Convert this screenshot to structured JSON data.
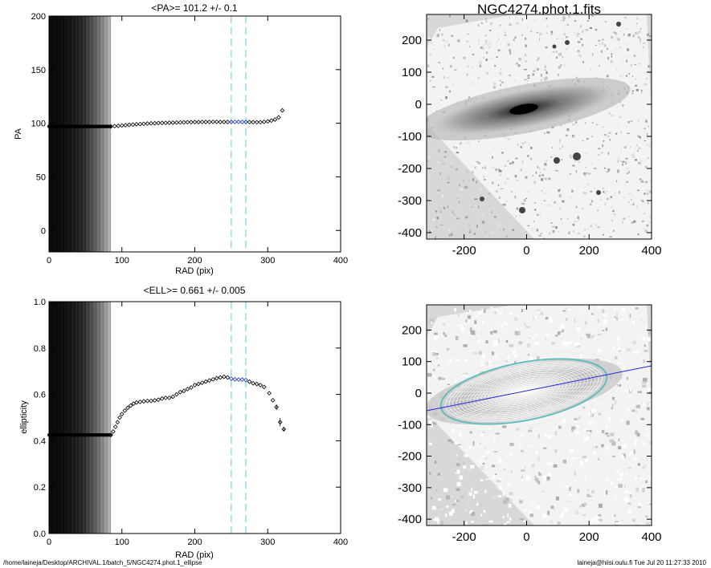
{
  "chart_data": [
    {
      "type": "scatter",
      "title": "<PA>= 101.2 +/-   0.1",
      "xlabel": "RAD (pix)",
      "ylabel": "PA",
      "xlim": [
        0,
        400
      ],
      "ylim": [
        -20,
        200
      ],
      "xticks": [
        "0",
        "100",
        "200",
        "300",
        "400"
      ],
      "yticks": [
        "0",
        "50",
        "100",
        "150",
        "200"
      ],
      "grid": false,
      "vlines": [
        250,
        270
      ],
      "flat_value": 97,
      "points": [
        [
          85,
          97
        ],
        [
          90,
          97.3
        ],
        [
          95,
          97.6
        ],
        [
          100,
          97.9
        ],
        [
          105,
          98.2
        ],
        [
          110,
          98.5
        ],
        [
          115,
          98.8
        ],
        [
          120,
          99.1
        ],
        [
          125,
          99.3
        ],
        [
          130,
          99.5
        ],
        [
          135,
          99.7
        ],
        [
          140,
          99.9
        ],
        [
          145,
          100
        ],
        [
          150,
          100.2
        ],
        [
          155,
          100.3
        ],
        [
          160,
          100.4
        ],
        [
          165,
          100.5
        ],
        [
          170,
          100.6
        ],
        [
          175,
          100.7
        ],
        [
          180,
          100.8
        ],
        [
          185,
          100.9
        ],
        [
          190,
          101
        ],
        [
          195,
          101
        ],
        [
          200,
          101.1
        ],
        [
          205,
          101.1
        ],
        [
          210,
          101.2
        ],
        [
          215,
          101.2
        ],
        [
          220,
          101.2
        ],
        [
          225,
          101.3
        ],
        [
          230,
          101.3
        ],
        [
          235,
          101.2
        ],
        [
          240,
          101.2
        ],
        [
          245,
          101.2
        ],
        [
          250,
          101.2
        ],
        [
          255,
          101.3
        ],
        [
          260,
          101.3
        ],
        [
          265,
          101.2
        ],
        [
          270,
          101.2
        ],
        [
          275,
          101.1
        ],
        [
          280,
          101
        ],
        [
          285,
          100.9
        ],
        [
          290,
          101
        ],
        [
          295,
          101.3
        ],
        [
          300,
          101.8
        ],
        [
          305,
          102.5
        ],
        [
          310,
          103.5
        ],
        [
          315,
          105.5
        ],
        [
          320,
          112
        ]
      ]
    },
    {
      "type": "scatter",
      "title": "<ELL>= 0.661 +/-  0.005",
      "xlabel": "RAD (pix)",
      "ylabel": "ellipticity",
      "xlim": [
        0,
        400
      ],
      "ylim": [
        0,
        1
      ],
      "xticks": [
        "0",
        "100",
        "200",
        "300",
        "400"
      ],
      "yticks": [
        "0.0",
        "0.2",
        "0.4",
        "0.6",
        "0.8",
        "1.0"
      ],
      "grid": false,
      "vlines": [
        250,
        270
      ],
      "flat_value": 0.425,
      "points": [
        [
          85,
          0.425
        ],
        [
          88,
          0.44
        ],
        [
          91,
          0.46
        ],
        [
          94,
          0.48
        ],
        [
          97,
          0.5
        ],
        [
          100,
          0.515
        ],
        [
          104,
          0.53
        ],
        [
          108,
          0.542
        ],
        [
          112,
          0.552
        ],
        [
          116,
          0.56
        ],
        [
          120,
          0.565
        ],
        [
          125,
          0.568
        ],
        [
          130,
          0.57
        ],
        [
          135,
          0.572
        ],
        [
          140,
          0.572
        ],
        [
          145,
          0.574
        ],
        [
          150,
          0.577
        ],
        [
          155,
          0.582
        ],
        [
          160,
          0.585
        ],
        [
          165,
          0.585
        ],
        [
          170,
          0.59
        ],
        [
          175,
          0.6
        ],
        [
          180,
          0.61
        ],
        [
          185,
          0.615
        ],
        [
          190,
          0.623
        ],
        [
          195,
          0.63
        ],
        [
          200,
          0.64
        ],
        [
          205,
          0.645
        ],
        [
          210,
          0.65
        ],
        [
          215,
          0.655
        ],
        [
          220,
          0.66
        ],
        [
          225,
          0.665
        ],
        [
          230,
          0.67
        ],
        [
          235,
          0.673
        ],
        [
          240,
          0.676
        ],
        [
          245,
          0.673
        ],
        [
          250,
          0.668
        ],
        [
          255,
          0.665
        ],
        [
          260,
          0.664
        ],
        [
          265,
          0.664
        ],
        [
          270,
          0.662
        ],
        [
          275,
          0.655
        ],
        [
          280,
          0.648
        ],
        [
          285,
          0.645
        ],
        [
          290,
          0.64
        ],
        [
          295,
          0.632
        ],
        [
          302,
          0.605
        ],
        [
          307,
          0.575
        ],
        [
          312,
          0.545
        ],
        [
          317,
          0.48
        ],
        [
          322,
          0.45
        ]
      ],
      "error_bars": [
        [
          312,
          0.545,
          0.012
        ],
        [
          317,
          0.48,
          0.018
        ],
        [
          322,
          0.45,
          0.01
        ]
      ]
    },
    {
      "type": "heatmap",
      "title": "NGC4274.phot.1.fits",
      "xlim": [
        -320,
        400
      ],
      "ylim": [
        -420,
        280
      ],
      "xticks": [
        "-200",
        "0",
        "200",
        "400"
      ],
      "yticks": [
        "-400",
        "-300",
        "-200",
        "-100",
        "0",
        "100",
        "200"
      ]
    },
    {
      "type": "heatmap",
      "xlim": [
        -320,
        400
      ],
      "ylim": [
        -420,
        280
      ],
      "xticks": [
        "-200",
        "0",
        "200",
        "400"
      ],
      "yticks": [
        "-400",
        "-300",
        "-200",
        "-100",
        "0",
        "100",
        "200"
      ],
      "pa_line_color": "#2222dd",
      "outer_ellipse_color": "#66bbbb"
    }
  ],
  "footer": {
    "path": "/home/laineja/Desktop/ARCHIVAL.1/batch_5/NGC4274.phot.1_ellipse",
    "user_time": "laineja@hiisi.oulu.fi  Tue Jul 20 11:27:33 2010"
  }
}
